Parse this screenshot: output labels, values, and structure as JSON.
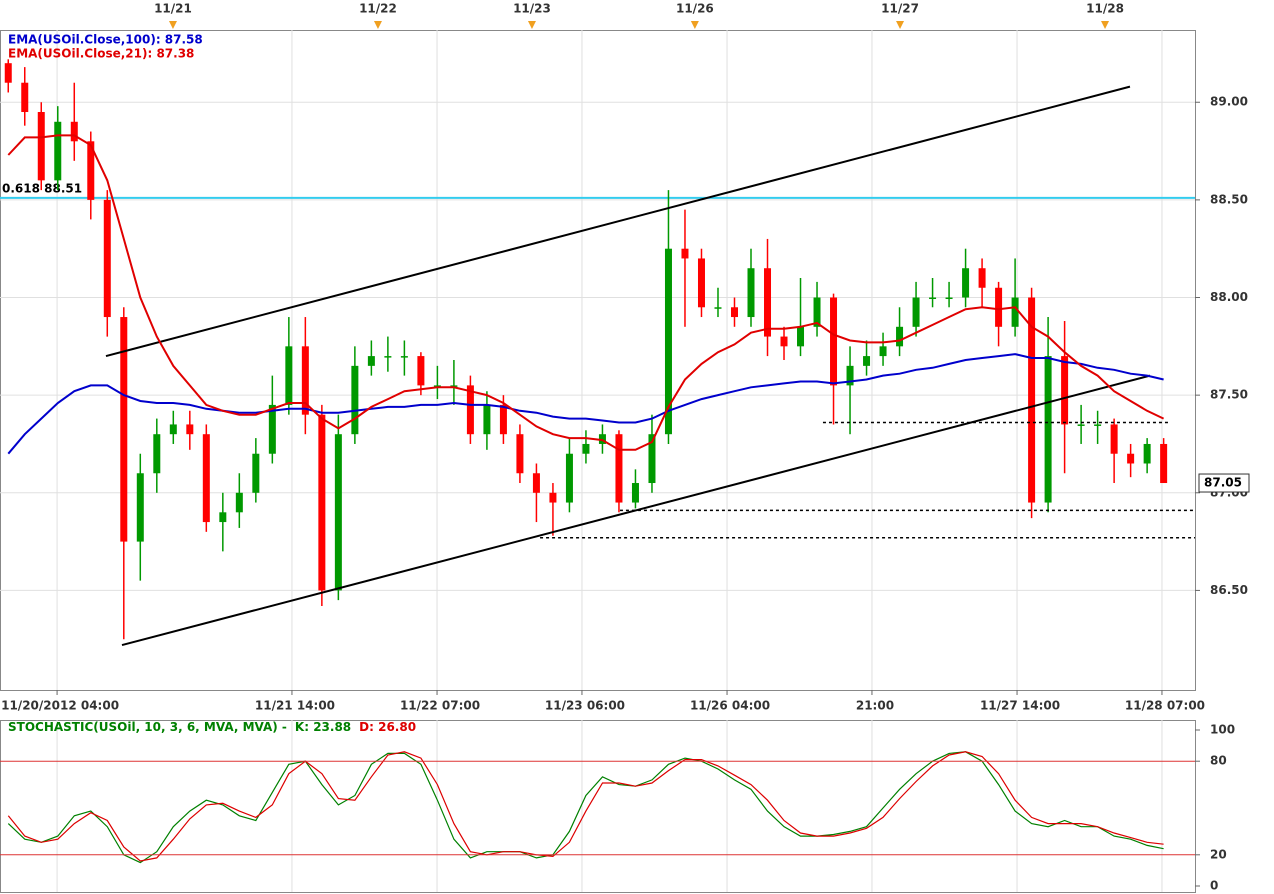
{
  "chart_data": [
    {
      "type": "candlestick",
      "xlim": [
        -0.5,
        71.9
      ],
      "ylim": [
        85.99,
        89.37
      ],
      "yticks": [
        {
          "value": 86.5,
          "label": "86.50"
        },
        {
          "value": 87,
          "label": "87.00"
        },
        {
          "value": 87.5,
          "label": "87.50"
        },
        {
          "value": 88,
          "label": "88.00"
        },
        {
          "value": 88.5,
          "label": "88.50"
        },
        {
          "value": 89,
          "label": "89.00"
        }
      ],
      "xticks": [
        {
          "value": 3.14,
          "label": "11/20/2012 04:00"
        },
        {
          "value": 17.37,
          "label": "11/21 14:00"
        },
        {
          "value": 26.16,
          "label": "11/22 07:00"
        },
        {
          "value": 34.94,
          "label": "11/23 06:00"
        },
        {
          "value": 43.73,
          "label": "11/26 04:00"
        },
        {
          "value": 52.51,
          "label": "21:00"
        },
        {
          "value": 61.3,
          "label": "11/27 14:00"
        },
        {
          "value": 70.08,
          "label": "11/28 07:00"
        }
      ],
      "top_ticks": [
        {
          "value": 9.98,
          "label": "11/21"
        },
        {
          "value": 22.4,
          "label": "11/22"
        },
        {
          "value": 31.73,
          "label": "11/23"
        },
        {
          "value": 41.6,
          "label": "11/26"
        },
        {
          "value": 54.03,
          "label": "11/27"
        },
        {
          "value": 66.45,
          "label": "11/28"
        }
      ],
      "grid": true,
      "up_color": "#009900",
      "down_color": "#ff0000",
      "open": [
        89.2,
        89.1,
        88.95,
        88.6,
        88.9,
        88.8,
        88.5,
        87.9,
        86.75,
        87.1,
        87.3,
        87.35,
        87.3,
        86.85,
        86.9,
        87.0,
        87.2,
        87.45,
        87.75,
        87.4,
        86.5,
        87.3,
        87.65,
        87.7,
        87.7,
        87.7,
        87.55,
        87.55,
        87.55,
        87.3,
        87.45,
        87.3,
        87.1,
        87.0,
        86.95,
        87.2,
        87.25,
        87.3,
        86.95,
        87.05,
        87.3,
        88.25,
        88.2,
        87.95,
        87.95,
        87.9,
        88.15,
        87.8,
        87.75,
        87.85,
        88.0,
        87.55,
        87.65,
        87.7,
        87.75,
        87.85,
        88.0,
        88.0,
        88.0,
        88.15,
        88.05,
        87.85,
        88.0,
        86.95,
        87.7,
        87.35,
        87.35,
        87.35,
        87.2,
        87.15,
        87.25
      ],
      "high": [
        89.22,
        89.18,
        89.0,
        88.98,
        89.1,
        88.85,
        88.55,
        87.95,
        87.2,
        87.38,
        87.42,
        87.42,
        87.35,
        87.0,
        87.1,
        87.28,
        87.6,
        87.9,
        87.9,
        87.45,
        87.4,
        87.75,
        87.78,
        87.8,
        87.78,
        87.72,
        87.65,
        87.68,
        87.6,
        87.52,
        87.5,
        87.35,
        87.15,
        87.05,
        87.28,
        87.32,
        87.35,
        87.32,
        87.12,
        87.4,
        88.55,
        88.45,
        88.25,
        88.05,
        88.0,
        88.25,
        88.3,
        87.85,
        88.1,
        88.08,
        88.02,
        87.75,
        87.78,
        87.82,
        87.95,
        88.08,
        88.1,
        88.08,
        88.25,
        88.2,
        88.08,
        88.2,
        88.05,
        87.9,
        87.88,
        87.45,
        87.42,
        87.38,
        87.25,
        87.28,
        87.28
      ],
      "low": [
        89.05,
        88.88,
        88.55,
        88.55,
        88.7,
        88.4,
        87.8,
        86.25,
        86.55,
        87.0,
        87.25,
        87.22,
        86.8,
        86.7,
        86.82,
        86.95,
        87.15,
        87.4,
        87.3,
        86.42,
        86.45,
        87.25,
        87.6,
        87.62,
        87.6,
        87.5,
        87.48,
        87.45,
        87.25,
        87.22,
        87.25,
        87.05,
        86.85,
        86.78,
        86.9,
        87.15,
        87.2,
        86.9,
        86.92,
        87.0,
        87.25,
        87.85,
        87.9,
        87.9,
        87.85,
        87.85,
        87.7,
        87.68,
        87.7,
        87.8,
        87.35,
        87.3,
        87.6,
        87.65,
        87.7,
        87.8,
        87.95,
        87.95,
        87.95,
        87.95,
        87.75,
        87.8,
        86.87,
        86.9,
        87.1,
        87.25,
        87.25,
        87.05,
        87.08,
        87.1,
        87.05
      ],
      "close": [
        89.1,
        88.95,
        88.6,
        88.9,
        88.8,
        88.5,
        87.9,
        86.75,
        87.1,
        87.3,
        87.35,
        87.3,
        86.85,
        86.9,
        87.0,
        87.2,
        87.45,
        87.75,
        87.4,
        86.5,
        87.3,
        87.65,
        87.7,
        87.7,
        87.7,
        87.55,
        87.55,
        87.55,
        87.3,
        87.45,
        87.3,
        87.1,
        87.0,
        86.95,
        87.2,
        87.25,
        87.3,
        86.95,
        87.05,
        87.3,
        88.25,
        88.2,
        87.95,
        87.95,
        87.9,
        88.15,
        87.8,
        87.75,
        87.85,
        88.0,
        87.55,
        87.65,
        87.7,
        87.75,
        87.85,
        88.0,
        88.0,
        88.0,
        88.15,
        88.05,
        87.85,
        88.0,
        86.95,
        87.7,
        87.35,
        87.35,
        87.35,
        87.2,
        87.15,
        87.25,
        87.05
      ],
      "series": [
        {
          "name": "EMA(USOil.Close,100): 87.58",
          "color": "#0000cc",
          "values": [
            87.2,
            87.3,
            87.38,
            87.46,
            87.52,
            87.55,
            87.55,
            87.5,
            87.47,
            87.46,
            87.46,
            87.45,
            87.43,
            87.42,
            87.41,
            87.41,
            87.42,
            87.43,
            87.43,
            87.41,
            87.41,
            87.42,
            87.43,
            87.44,
            87.44,
            87.45,
            87.45,
            87.46,
            87.45,
            87.45,
            87.44,
            87.42,
            87.41,
            87.39,
            87.38,
            87.38,
            87.37,
            87.36,
            87.36,
            87.38,
            87.42,
            87.45,
            87.48,
            87.5,
            87.52,
            87.54,
            87.55,
            87.56,
            87.57,
            87.57,
            87.56,
            87.57,
            87.58,
            87.6,
            87.61,
            87.63,
            87.64,
            87.66,
            87.68,
            87.69,
            87.7,
            87.71,
            87.69,
            87.69,
            87.67,
            87.66,
            87.64,
            87.63,
            87.61,
            87.6,
            87.58
          ]
        },
        {
          "name": "EMA(USOil.Close,21): 87.38",
          "color": "#e00000",
          "values": [
            88.73,
            88.82,
            88.82,
            88.83,
            88.83,
            88.78,
            88.6,
            88.3,
            88.0,
            87.8,
            87.65,
            87.55,
            87.45,
            87.42,
            87.4,
            87.4,
            87.43,
            87.46,
            87.46,
            87.38,
            87.33,
            87.38,
            87.44,
            87.48,
            87.52,
            87.53,
            87.54,
            87.54,
            87.52,
            87.5,
            87.46,
            87.4,
            87.34,
            87.3,
            87.28,
            87.28,
            87.27,
            87.22,
            87.22,
            87.26,
            87.44,
            87.58,
            87.66,
            87.72,
            87.76,
            87.82,
            87.84,
            87.84,
            87.85,
            87.87,
            87.81,
            87.78,
            87.77,
            87.77,
            87.78,
            87.82,
            87.86,
            87.9,
            87.94,
            87.95,
            87.94,
            87.95,
            87.85,
            87.8,
            87.72,
            87.65,
            87.6,
            87.52,
            87.47,
            87.42,
            87.38
          ]
        }
      ],
      "fib_line": {
        "value": 88.51,
        "label": "0.618 88.51",
        "color": "#33ccee"
      },
      "last_price": 87.05,
      "trend_lines": [
        {
          "x1": 5.92,
          "y1": 87.7,
          "x2": 67.96,
          "y2": 89.08,
          "color": "#000000",
          "dashed": false
        },
        {
          "x1": 6.89,
          "y1": 86.22,
          "x2": 69.17,
          "y2": 87.6,
          "color": "#000000",
          "dashed": false
        },
        {
          "x1": 49.36,
          "y1": 87.36,
          "x2": 70.39,
          "y2": 87.36,
          "color": "#000000",
          "dashed": true
        },
        {
          "x1": 37.06,
          "y1": 86.91,
          "x2": 71.9,
          "y2": 86.91,
          "color": "#000000",
          "dashed": true
        },
        {
          "x1": 32.22,
          "y1": 86.77,
          "x2": 71.9,
          "y2": 86.77,
          "color": "#000000",
          "dashed": true
        }
      ]
    },
    {
      "type": "line",
      "title": "STOCHASTIC(USOil, 10, 3, 6, MVA, MVA) -",
      "xlim": [
        -0.5,
        71.9
      ],
      "ylim": [
        0,
        100
      ],
      "yticks": [
        0,
        20,
        80,
        100
      ],
      "levels": [
        20,
        80
      ],
      "level_color": "#dd3333",
      "series": [
        {
          "name": "K: 23.88",
          "color": "#008000",
          "values": [
            40,
            30,
            28,
            32,
            45,
            48,
            38,
            20,
            15,
            22,
            38,
            48,
            55,
            52,
            45,
            42,
            60,
            78,
            80,
            65,
            52,
            58,
            78,
            85,
            85,
            78,
            55,
            30,
            18,
            22,
            22,
            22,
            18,
            20,
            35,
            58,
            70,
            65,
            64,
            68,
            78,
            82,
            80,
            75,
            68,
            62,
            48,
            38,
            32,
            32,
            33,
            35,
            38,
            50,
            62,
            72,
            80,
            85,
            86,
            80,
            65,
            48,
            40,
            38,
            42,
            38,
            38,
            32,
            30,
            26,
            23.88
          ]
        },
        {
          "name": "D: 26.80",
          "color": "#dd0000",
          "values": [
            45,
            32,
            28,
            30,
            40,
            47,
            42,
            25,
            16,
            18,
            30,
            43,
            52,
            53,
            48,
            44,
            52,
            72,
            80,
            72,
            56,
            55,
            70,
            84,
            86,
            82,
            65,
            40,
            22,
            20,
            22,
            22,
            20,
            19,
            28,
            48,
            66,
            66,
            64,
            66,
            74,
            81,
            81,
            77,
            71,
            65,
            55,
            42,
            34,
            32,
            32,
            34,
            37,
            44,
            56,
            67,
            77,
            84,
            86,
            83,
            72,
            55,
            44,
            40,
            40,
            40,
            38,
            34,
            31,
            28,
            26.8
          ]
        }
      ]
    }
  ]
}
